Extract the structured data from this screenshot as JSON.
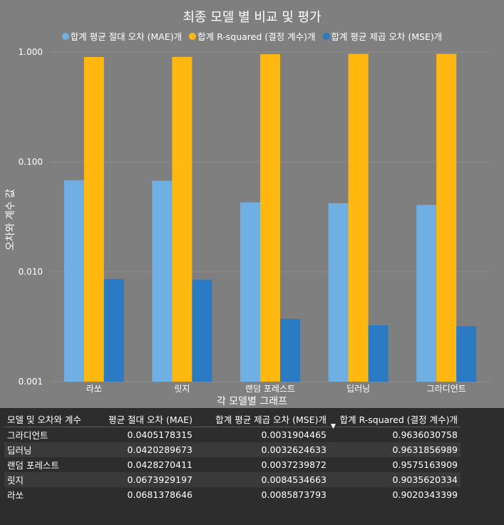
{
  "chart_data": {
    "type": "bar",
    "title": "최종 모델 별 비교 및 평가",
    "xlabel": "각 모델별 그래프",
    "ylabel": "오차와 계수 값",
    "yscale": "log",
    "ylim": [
      0.001,
      1.0
    ],
    "yticks": [
      "0.001",
      "0.010",
      "0.100",
      "1.000"
    ],
    "categories": [
      "라쏘",
      "릿지",
      "랜덤 포레스트",
      "딥러닝",
      "그라디언트"
    ],
    "series": [
      {
        "name": "합계 평균 절대 오차 (MAE)개",
        "color": "#6fafe3",
        "values": [
          0.0681378646,
          0.0673929197,
          0.0428270411,
          0.0420289673,
          0.0405178315
        ]
      },
      {
        "name": "합계 R-squared (결정 계수)개",
        "color": "#ffb80f",
        "values": [
          0.9020343399,
          0.9035620334,
          0.9575163909,
          0.9631856989,
          0.9636030758
        ]
      },
      {
        "name": "합계 평균 제곱 오차 (MSE)개",
        "color": "#2a7ac4",
        "values": [
          0.0085873793,
          0.0084534663,
          0.0037239872,
          0.0032624633,
          0.0031904465
        ]
      }
    ]
  },
  "table": {
    "headers": [
      "모델 및 오차와 계수",
      "평균 절대 오차 (MAE)",
      "합계 평균 제곱 오차 (MSE)개",
      "합계 R-squared (결정 계수)개"
    ],
    "rows": [
      [
        "그라디언트",
        "0.0405178315",
        "0.0031904465",
        "0.9636030758"
      ],
      [
        "딥러닝",
        "0.0420289673",
        "0.0032624633",
        "0.9631856989"
      ],
      [
        "랜덤 포레스트",
        "0.0428270411",
        "0.0037239872",
        "0.9575163909"
      ],
      [
        "릿지",
        "0.0673929197",
        "0.0084534663",
        "0.9035620334"
      ],
      [
        "라쏘",
        "0.0681378646",
        "0.0085873793",
        "0.9020343399"
      ]
    ]
  }
}
